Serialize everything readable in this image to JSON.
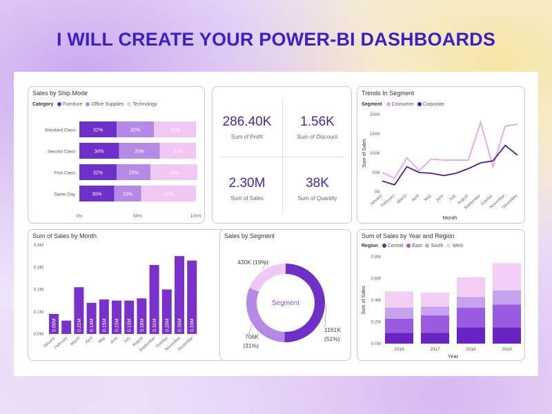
{
  "headline": "I WILL CREATE YOUR POWER-BI DASHBOARDS",
  "colors": {
    "furniture": "#6f2fc9",
    "office": "#b48ae6",
    "technology": "#f0c8f3",
    "consumer": "#e7a3ec",
    "corporate": "#4d169f",
    "central": "#6a24c4",
    "east": "#9a5be0",
    "south": "#c6a3ee",
    "west": "#f2cdf4",
    "bar": "#7a30cc"
  },
  "kpis": [
    {
      "value": "286.40K",
      "label": "Sum of Profit"
    },
    {
      "value": "1.56K",
      "label": "Sum of Discount"
    },
    {
      "value": "2.30M",
      "label": "Sum of Sales"
    },
    {
      "value": "38K",
      "label": "Sum of Quantity"
    }
  ],
  "chart_data": [
    {
      "id": "ship",
      "type": "bar",
      "title": "Sales by Ship Mode",
      "legend_title": "Category",
      "legend": [
        "Furniture",
        "Office Supplies",
        "Technology"
      ],
      "categories": [
        "Standard Class",
        "Second Class",
        "First Class",
        "Same Day"
      ],
      "series": [
        {
          "name": "Furniture",
          "values": [
            32,
            34,
            32,
            30
          ],
          "labels": [
            "32%",
            "34%",
            "32%",
            "30%"
          ]
        },
        {
          "name": "Office Supplies",
          "values": [
            32,
            35,
            29,
            23
          ],
          "labels": [
            "32%",
            "35%",
            "29%",
            "23%"
          ]
        },
        {
          "name": "Technology",
          "values": [
            36,
            31,
            40,
            47
          ],
          "labels": [
            "36%",
            "31%",
            "40%",
            "47%"
          ]
        }
      ],
      "xticks": [
        "0%",
        "50%",
        "100%"
      ],
      "xlim": [
        0,
        100
      ]
    },
    {
      "id": "trend",
      "type": "line",
      "title": "Trends In Segment",
      "legend_title": "Segment",
      "legend": [
        "Consumer",
        "Corporate"
      ],
      "categories": [
        "January",
        "February",
        "March",
        "April",
        "May",
        "June",
        "July",
        "August",
        "September",
        "October",
        "November",
        "December"
      ],
      "series": [
        {
          "name": "Consumer",
          "values": [
            50,
            35,
            88,
            55,
            85,
            82,
            82,
            82,
            180,
            65,
            170,
            175
          ]
        },
        {
          "name": "Corporate",
          "values": [
            28,
            18,
            65,
            50,
            48,
            42,
            48,
            60,
            75,
            80,
            120,
            95
          ]
        }
      ],
      "yticks": [
        "0K",
        "50K",
        "100K",
        "150K",
        "200K"
      ],
      "ylim": [
        0,
        200
      ],
      "xlabel": "Month",
      "ylabel": "Sum of Sales"
    },
    {
      "id": "month",
      "type": "bar",
      "title": "Sum of Sales by Month",
      "categories": [
        "January",
        "February",
        "March",
        "April",
        "May",
        "June",
        "July",
        "August",
        "September",
        "October",
        "November",
        "December"
      ],
      "values": [
        0.09,
        0.06,
        0.21,
        0.14,
        0.155,
        0.15,
        0.15,
        0.16,
        0.31,
        0.2,
        0.35,
        0.33
      ],
      "labels": [
        "0.09M",
        "",
        "0.21M",
        "0.14M",
        "0.15M",
        "0.15M",
        "0.15M",
        "0.16M",
        "0.31M",
        "0.20M",
        "0.35M",
        "0.33M"
      ],
      "yticks": [
        "0.0M",
        "0.1M",
        "0.2M",
        "0.3M",
        "0.4M"
      ],
      "ylim": [
        0,
        0.4
      ]
    },
    {
      "id": "segment",
      "type": "pie",
      "title": "Sales by Segment",
      "center_label": "Segment",
      "slices": [
        {
          "name": "Consumer",
          "value": 1161,
          "label": "1161K",
          "pct": "(51%)"
        },
        {
          "name": "Corporate",
          "value": 706,
          "label": "706K",
          "pct": "(31%)"
        },
        {
          "name": "Home Office",
          "value": 430,
          "label": "430K (19%)",
          "pct": ""
        }
      ]
    },
    {
      "id": "region",
      "type": "bar",
      "title": "Sum of Sales by Year and Region",
      "legend_title": "Region",
      "legend": [
        "Central",
        "East",
        "South",
        "West"
      ],
      "categories": [
        "2016",
        "2017",
        "2018",
        "2019"
      ],
      "series": [
        {
          "name": "Central",
          "values": [
            0.1,
            0.1,
            0.15,
            0.15
          ]
        },
        {
          "name": "East",
          "values": [
            0.13,
            0.16,
            0.18,
            0.21
          ]
        },
        {
          "name": "South",
          "values": [
            0.1,
            0.08,
            0.1,
            0.13
          ]
        },
        {
          "name": "West",
          "values": [
            0.15,
            0.13,
            0.18,
            0.25
          ]
        }
      ],
      "yticks": [
        "0.0M",
        "0.2M",
        "0.4M",
        "0.6M",
        "0.8M"
      ],
      "ylim": [
        0,
        0.8
      ],
      "xlabel": "Year",
      "ylabel": "Sum of Sales"
    }
  ]
}
